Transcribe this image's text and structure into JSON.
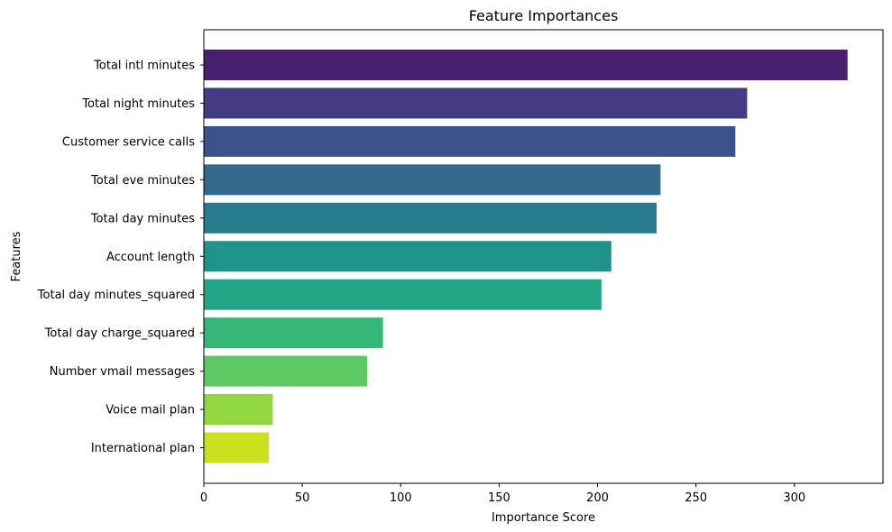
{
  "chart_data": {
    "type": "bar",
    "orientation": "horizontal",
    "title": "Feature Importances",
    "xlabel": "Importance Score",
    "ylabel": "Features",
    "xlim": [
      0,
      345
    ],
    "xticks": [
      0,
      50,
      100,
      150,
      200,
      250,
      300
    ],
    "grid": false,
    "categories": [
      "Total intl minutes",
      "Total night minutes",
      "Customer service calls",
      "Total eve minutes",
      "Total day minutes",
      "Account length",
      "Total day minutes_squared",
      "Total day charge_squared",
      "Number vmail messages",
      "Voice mail plan",
      "International plan"
    ],
    "values": [
      327,
      276,
      270,
      232,
      230,
      207,
      202,
      91,
      83,
      35,
      33
    ],
    "colors": [
      "#481f6f",
      "#453a84",
      "#3d528a",
      "#33698c",
      "#297b8e",
      "#20928c",
      "#21a685",
      "#35b778",
      "#5ec962",
      "#91d740",
      "#c9e01f"
    ]
  }
}
